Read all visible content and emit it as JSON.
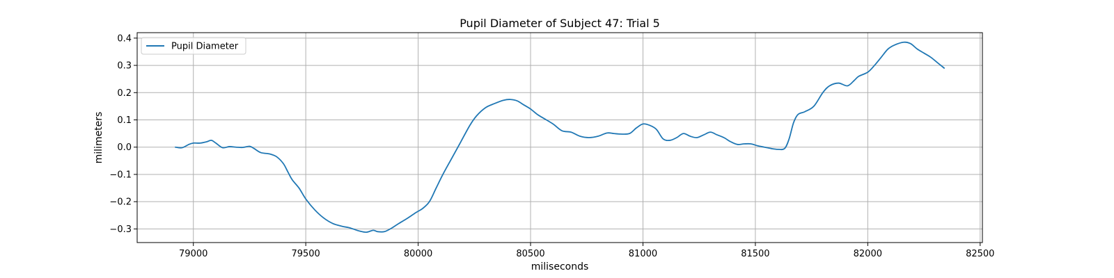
{
  "chart_data": {
    "type": "line",
    "title": "Pupil Diameter of Subject 47: Trial 5",
    "xlabel": "miliseconds",
    "ylabel": "milimeters",
    "xlim": [
      78750,
      82510
    ],
    "ylim": [
      -0.35,
      0.42
    ],
    "xticks": [
      79000,
      79500,
      80000,
      80500,
      81000,
      81500,
      82000,
      82500
    ],
    "yticks": [
      -0.3,
      -0.2,
      -0.1,
      0.0,
      0.1,
      0.2,
      0.3,
      0.4
    ],
    "xtick_labels": [
      "79000",
      "79500",
      "80000",
      "80500",
      "81000",
      "81500",
      "82000",
      "82500"
    ],
    "ytick_labels": [
      "−0.3",
      "−0.2",
      "−0.1",
      "0.0",
      "0.1",
      "0.2",
      "0.3",
      "0.4"
    ],
    "grid": true,
    "legend_position": "top-left",
    "series": [
      {
        "name": "Pupil Diameter",
        "color": "#1f77b4",
        "x": [
          78920,
          78950,
          78980,
          79000,
          79030,
          79060,
          79080,
          79100,
          79130,
          79160,
          79190,
          79220,
          79250,
          79270,
          79300,
          79340,
          79370,
          79400,
          79420,
          79440,
          79470,
          79500,
          79540,
          79580,
          79620,
          79660,
          79690,
          79710,
          79740,
          79770,
          79800,
          79820,
          79850,
          79880,
          79910,
          79950,
          79990,
          80020,
          80050,
          80080,
          80110,
          80150,
          80190,
          80230,
          80260,
          80300,
          80340,
          80380,
          80410,
          80440,
          80470,
          80500,
          80530,
          80560,
          80600,
          80640,
          80680,
          80720,
          80760,
          80800,
          80840,
          80870,
          80900,
          80940,
          80970,
          81000,
          81030,
          81060,
          81090,
          81120,
          81150,
          81180,
          81210,
          81240,
          81270,
          81300,
          81330,
          81360,
          81390,
          81420,
          81450,
          81480,
          81510,
          81540,
          81570,
          81600,
          81630,
          81650,
          81670,
          81690,
          81720,
          81760,
          81800,
          81830,
          81870,
          81910,
          81940,
          81960,
          82000,
          82030,
          82060,
          82090,
          82120,
          82160,
          82190,
          82220,
          82250,
          82280,
          82310,
          82340
        ],
        "y": [
          0.0,
          -0.002,
          0.01,
          0.015,
          0.015,
          0.02,
          0.025,
          0.015,
          -0.002,
          0.002,
          0.0,
          -0.001,
          0.003,
          -0.005,
          -0.02,
          -0.025,
          -0.035,
          -0.06,
          -0.09,
          -0.12,
          -0.15,
          -0.19,
          -0.23,
          -0.26,
          -0.28,
          -0.29,
          -0.295,
          -0.3,
          -0.308,
          -0.312,
          -0.305,
          -0.31,
          -0.31,
          -0.298,
          -0.282,
          -0.262,
          -0.24,
          -0.225,
          -0.2,
          -0.15,
          -0.1,
          -0.04,
          0.02,
          0.08,
          0.115,
          0.145,
          0.16,
          0.172,
          0.175,
          0.17,
          0.155,
          0.14,
          0.12,
          0.105,
          0.085,
          0.06,
          0.055,
          0.04,
          0.035,
          0.04,
          0.052,
          0.05,
          0.048,
          0.05,
          0.07,
          0.085,
          0.08,
          0.065,
          0.03,
          0.025,
          0.035,
          0.05,
          0.04,
          0.035,
          0.045,
          0.055,
          0.045,
          0.035,
          0.02,
          0.01,
          0.012,
          0.012,
          0.005,
          0.0,
          -0.005,
          -0.008,
          -0.005,
          0.03,
          0.09,
          0.12,
          0.13,
          0.15,
          0.2,
          0.225,
          0.235,
          0.225,
          0.245,
          0.26,
          0.275,
          0.3,
          0.33,
          0.36,
          0.375,
          0.385,
          0.38,
          0.36,
          0.345,
          0.33,
          0.31,
          0.29
        ]
      }
    ]
  }
}
